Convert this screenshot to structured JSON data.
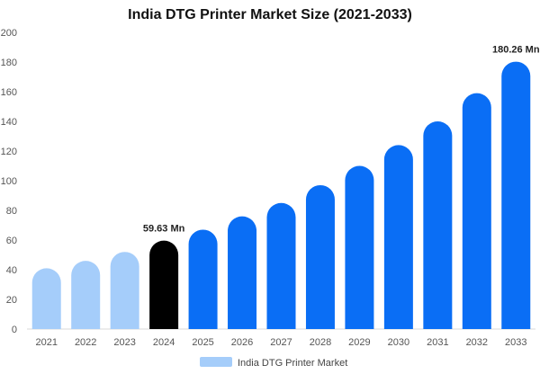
{
  "chart_data": {
    "type": "bar",
    "title": "India DTG Printer Market Size (2021-2033)",
    "categories": [
      "2021",
      "2022",
      "2023",
      "2024",
      "2025",
      "2026",
      "2027",
      "2028",
      "2029",
      "2030",
      "2031",
      "2032",
      "2033"
    ],
    "series": [
      {
        "name": "India DTG Printer Market",
        "values": [
          41,
          46,
          52,
          59.63,
          67,
          76,
          85,
          97,
          110,
          124,
          140,
          159,
          180.26
        ]
      }
    ],
    "ylim": [
      0,
      200
    ],
    "yticks": [
      0,
      20,
      40,
      60,
      80,
      100,
      120,
      140,
      160,
      180,
      200
    ],
    "grid": false,
    "legend_position": "bottom",
    "data_labels": [
      {
        "category": "2024",
        "text": "59.63 Mn"
      },
      {
        "category": "2033",
        "text": "180.26 Mn"
      }
    ],
    "colors": {
      "historical": "#a5cdfa",
      "current": "#000000",
      "forecast": "#0a6ef5",
      "legend_swatch": "#a5cdfa"
    },
    "historical_categories": [
      "2021",
      "2022",
      "2023"
    ],
    "current_category": "2024"
  }
}
